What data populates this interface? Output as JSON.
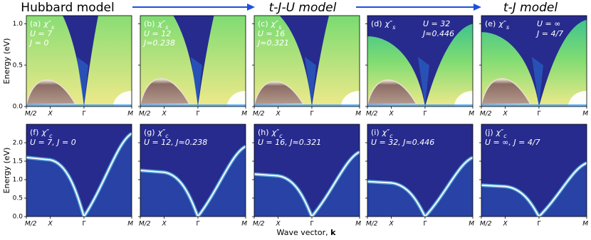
{
  "header": {
    "models": [
      "Hubbard model",
      "t-J-U model",
      "t-J model"
    ]
  },
  "axes": {
    "y_label": "Energy (eV)",
    "x_label": "Wave vector, ",
    "x_label_bold": "k",
    "x_ticks": [
      "M/2",
      "X",
      "Γ",
      "M"
    ],
    "top_ylim": [
      0,
      1.1
    ],
    "top_yticks": [
      {
        "value": 0,
        "label": "0.0"
      },
      {
        "value": 0.5,
        "label": "0.5"
      },
      {
        "value": 1,
        "label": "1.0"
      }
    ],
    "bottom_ylim": [
      0,
      2.5
    ],
    "bottom_yticks": [
      {
        "value": 0,
        "label": "0.0"
      },
      {
        "value": 0.5,
        "label": "0.5"
      },
      {
        "value": 1,
        "label": "1.0"
      },
      {
        "value": 1.5,
        "label": "1.5"
      },
      {
        "value": 2,
        "label": "2.0"
      }
    ]
  },
  "panels": {
    "top": [
      {
        "tag": "(a)",
        "symbol": "χ″",
        "sub": "s",
        "lines": [
          "U = 7",
          "J = 0"
        ]
      },
      {
        "tag": "(b)",
        "symbol": "χ″",
        "sub": "s",
        "lines": [
          "U = 12",
          "J≈0.238"
        ]
      },
      {
        "tag": "(c)",
        "symbol": "χ″",
        "sub": "s",
        "lines": [
          "U = 16",
          "J≈0.321"
        ]
      },
      {
        "tag": "(d)",
        "symbol": "χ″",
        "sub": "s",
        "lines": [
          "U = 32",
          "J≈0.446"
        ]
      },
      {
        "tag": "(e)",
        "symbol": "χ″",
        "sub": "s",
        "lines": [
          "U = ∞",
          "J = 4/7"
        ]
      }
    ],
    "bottom": [
      {
        "tag": "(f)",
        "symbol": "χ″",
        "sub": "c",
        "lines": [
          "U = 7, J = 0"
        ]
      },
      {
        "tag": "(g)",
        "symbol": "χ″",
        "sub": "c",
        "lines": [
          "U = 12, J≈0.238"
        ]
      },
      {
        "tag": "(h)",
        "symbol": "χ″",
        "sub": "c",
        "lines": [
          "U = 16, J≈0.321"
        ]
      },
      {
        "tag": "(i)",
        "symbol": "χ″",
        "sub": "c",
        "lines": [
          "U = 32, J≈0.446"
        ]
      },
      {
        "tag": "(j)",
        "symbol": "χ″",
        "sub": "c",
        "lines": [
          "U = ∞, J = 4/7"
        ]
      }
    ]
  }
}
